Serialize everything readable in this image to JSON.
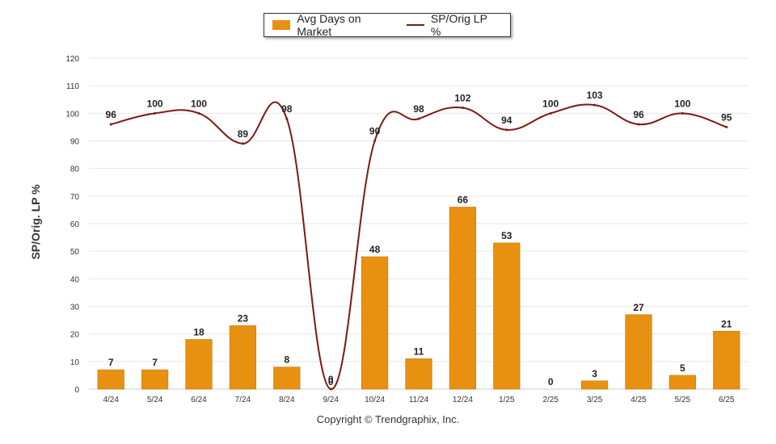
{
  "legend": {
    "bar_label": "Avg Days on Market",
    "line_label": "SP/Orig LP %"
  },
  "copyright": "Copyright © Trendgraphix, Inc.",
  "colors": {
    "bar": "#E8900F",
    "bar_edge": "#C77A08",
    "line": "#7B1A12",
    "grid": "#e6e6e6",
    "axis_text": "#333333"
  },
  "chart_data": {
    "type": "bar",
    "ylabel": "SP/Orig. LP %",
    "ylim": [
      0,
      120
    ],
    "yticks": [
      0,
      10,
      20,
      30,
      40,
      50,
      60,
      70,
      80,
      90,
      100,
      110,
      120
    ],
    "grid": true,
    "legend_position": "top-center",
    "categories": [
      "4/24",
      "5/24",
      "6/24",
      "7/24",
      "8/24",
      "9/24",
      "10/24",
      "11/24",
      "12/24",
      "1/25",
      "2/25",
      "3/25",
      "4/25",
      "5/25",
      "6/25"
    ],
    "series": [
      {
        "name": "Avg Days on Market",
        "type": "bar",
        "values": [
          7,
          7,
          18,
          23,
          8,
          0,
          48,
          11,
          66,
          53,
          0,
          3,
          27,
          5,
          21
        ]
      },
      {
        "name": "SP/Orig LP %",
        "type": "line",
        "values": [
          96,
          100,
          100,
          89,
          98,
          0,
          90,
          98,
          102,
          94,
          100,
          103,
          96,
          100,
          95
        ]
      }
    ]
  }
}
